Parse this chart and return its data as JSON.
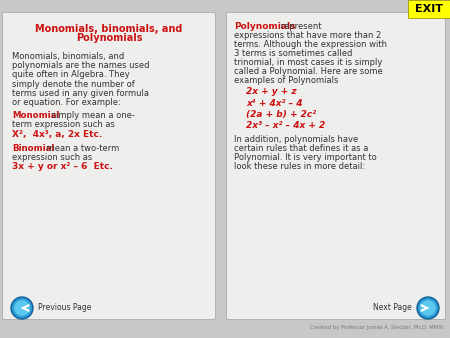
{
  "bg_color": "#c8c8c8",
  "panel_bg": "#eeeeed",
  "grid_color": "#d0d0d0",
  "exit_bg": "#ffff00",
  "exit_text": "EXIT",
  "exit_color": "#000000",
  "red": "#cc1111",
  "black": "#333333",
  "title_line1": "Monomials, binomials, and",
  "title_line2": "Polynomials",
  "body_lines": [
    "Monomials, binomials, and",
    "polynomials are the names used",
    "quite often in Algebra. They",
    "simply denote the number of",
    "terms used in any given formula",
    "or equation. For example:"
  ],
  "monomial_label": "Monomial",
  "monomial_rest1": " simply mean a one-",
  "monomial_rest2": "term expression such as",
  "monomial_examples": "X²,  4x³, a, 2x Etc.",
  "binomial_label": "Binomial",
  "binomial_rest1": " mean a two-term",
  "binomial_rest2": "expression such as",
  "binomial_examples": "3x + y or x² – 6  Etc.",
  "poly_bold": "Polynomials",
  "poly_intro_rest": " represent",
  "poly_intro_lines": [
    "expressions that have more than 2",
    "terms. Although the expression with",
    "3 terms is sometimes called",
    "trinomial, in most cases it is simply",
    "called a Polynomial. Here are some",
    "examples of Polynomials"
  ],
  "poly1": "2x + y + z",
  "poly2": "x⁴ + 4x² – 4",
  "poly3": "(2a + b) + 2c²",
  "poly4": "2x³ – x² – 4x + 2",
  "footer_lines": [
    "In addition, polynomials have",
    "certain rules that defines it as a",
    "Polynomial. It is very important to",
    "look these rules in more detail:"
  ],
  "footer_left": "Previous Page",
  "footer_right": "Next Page",
  "credit": "Created by Professor James A. Sinclair, Ph.D. MMXI"
}
